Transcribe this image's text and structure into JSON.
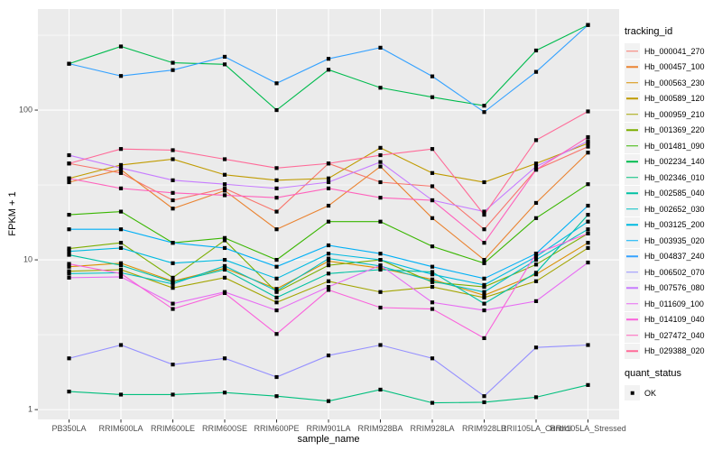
{
  "figure": {
    "background": "#ffffff",
    "panel_background": "#ebebeb",
    "grid_color": "#ffffff",
    "tick_mark_color": "#333333",
    "tick_label_color": "#4d4d4d",
    "marker_color": "#000000"
  },
  "legend": {
    "tracking_title": "tracking_id",
    "quant_title": "quant_status",
    "quant_items": [
      {
        "label": "OK",
        "marker": "black-square"
      }
    ]
  },
  "chart_data": {
    "type": "line",
    "title": "",
    "xlabel": "sample_name",
    "ylabel": "FPKM + 1",
    "y_scale": "log10",
    "ylim": [
      0.86,
      473
    ],
    "y_ticks": [
      1,
      10,
      100
    ],
    "y_minor_ticks": [
      3.1623,
      31.623,
      316.23
    ],
    "grid": true,
    "legend_position": "right",
    "marker": {
      "shape": "square",
      "color": "#000000",
      "size": 4.2
    },
    "categories": [
      "PB350LA",
      "RRIM600LA",
      "RRIM600LE",
      "RRIM600SE",
      "RRIM600PE",
      "RRIM901LA",
      "RRIM928BA",
      "RRIM928LA",
      "RRIM928LB",
      "RRII105LA_Control",
      "RRII105LA_Stressed"
    ],
    "series": [
      {
        "name": "Hb_000041_270",
        "color": "#F8766D",
        "values": [
          44,
          38,
          25,
          30,
          21,
          44,
          33,
          31,
          16,
          40,
          57
        ]
      },
      {
        "name": "Hb_000457_100",
        "color": "#EA8331",
        "values": [
          33,
          40,
          22,
          29,
          16,
          23,
          42,
          19,
          10,
          24,
          52
        ]
      },
      {
        "name": "Hb_000563_230",
        "color": "#D89000",
        "values": [
          9,
          9.5,
          7.2,
          8.8,
          6.4,
          9.8,
          8.8,
          7.4,
          5.8,
          8,
          13
        ]
      },
      {
        "name": "Hb_000589_120",
        "color": "#C09B00",
        "values": [
          35,
          43,
          47,
          37,
          34,
          35,
          56,
          38,
          33,
          44,
          60
        ]
      },
      {
        "name": "Hb_000959_210",
        "color": "#A3A500",
        "values": [
          8.4,
          8.6,
          6.5,
          7.6,
          5.2,
          7.2,
          6.1,
          6.6,
          5.6,
          7.2,
          12
        ]
      },
      {
        "name": "Hb_001369_220",
        "color": "#7CAE00",
        "values": [
          11.9,
          13,
          7.6,
          13.5,
          6.1,
          9.2,
          10,
          7.1,
          6.6,
          9.3,
          15
        ]
      },
      {
        "name": "Hb_001481_090",
        "color": "#39B600",
        "values": [
          20,
          21,
          13,
          14,
          10,
          18,
          18,
          12.3,
          9.5,
          19,
          32
        ]
      },
      {
        "name": "Hb_002234_140",
        "color": "#00BB4E",
        "values": [
          204,
          266,
          207,
          202,
          100,
          186,
          141,
          122,
          107,
          250,
          370
        ]
      },
      {
        "name": "Hb_002346_010",
        "color": "#00BF7D",
        "values": [
          1.32,
          1.26,
          1.26,
          1.3,
          1.23,
          1.14,
          1.36,
          1.11,
          1.12,
          1.21,
          1.46
        ]
      },
      {
        "name": "Hb_002585_040",
        "color": "#00C1A3",
        "values": [
          10.8,
          9.2,
          7.1,
          8.6,
          5.6,
          8.1,
          8.6,
          8.3,
          5.1,
          8.2,
          20
        ]
      },
      {
        "name": "Hb_002652_030",
        "color": "#00BFC4",
        "values": [
          8.1,
          8.2,
          6.9,
          9.1,
          6.2,
          10.2,
          9.1,
          7.2,
          6.1,
          10,
          16
        ]
      },
      {
        "name": "Hb_003125_200",
        "color": "#00BAE0",
        "values": [
          11.4,
          12,
          9.5,
          10,
          7.5,
          11,
          10,
          8,
          6.8,
          10.5,
          18
        ]
      },
      {
        "name": "Hb_003935_020",
        "color": "#00B0F6",
        "values": [
          16,
          16,
          13,
          12,
          9,
          12.5,
          11,
          9,
          7.5,
          11,
          23
        ]
      },
      {
        "name": "Hb_004837_240",
        "color": "#35A2FF",
        "values": [
          204,
          169,
          185,
          227,
          151,
          220,
          261,
          168,
          97,
          180,
          370
        ]
      },
      {
        "name": "Hb_006502_070",
        "color": "#9590FF",
        "values": [
          2.2,
          2.7,
          2.0,
          2.2,
          1.65,
          2.3,
          2.7,
          2.2,
          1.23,
          2.6,
          2.7
        ]
      },
      {
        "name": "Hb_007576_080",
        "color": "#C77CFF",
        "values": [
          50,
          41,
          34,
          32,
          30,
          33,
          45,
          25,
          21,
          42,
          62
        ]
      },
      {
        "name": "Hb_011609_100",
        "color": "#E76BF3",
        "values": [
          7.6,
          7.7,
          5.1,
          6.1,
          4.6,
          6.6,
          9.2,
          5.2,
          4.6,
          5.3,
          9.6
        ]
      },
      {
        "name": "Hb_014109_040",
        "color": "#FA62DB",
        "values": [
          9.4,
          8.1,
          4.7,
          6,
          3.2,
          6.3,
          4.8,
          4.7,
          3,
          11,
          15
        ]
      },
      {
        "name": "Hb_027472_040",
        "color": "#FF62BC",
        "values": [
          35,
          30,
          28,
          27,
          26,
          30,
          26,
          25,
          13,
          40,
          66
        ]
      },
      {
        "name": "Hb_029388_020",
        "color": "#FF6A98",
        "values": [
          44,
          55,
          54,
          47,
          41,
          44,
          50,
          55,
          20,
          63,
          98
        ]
      }
    ]
  }
}
